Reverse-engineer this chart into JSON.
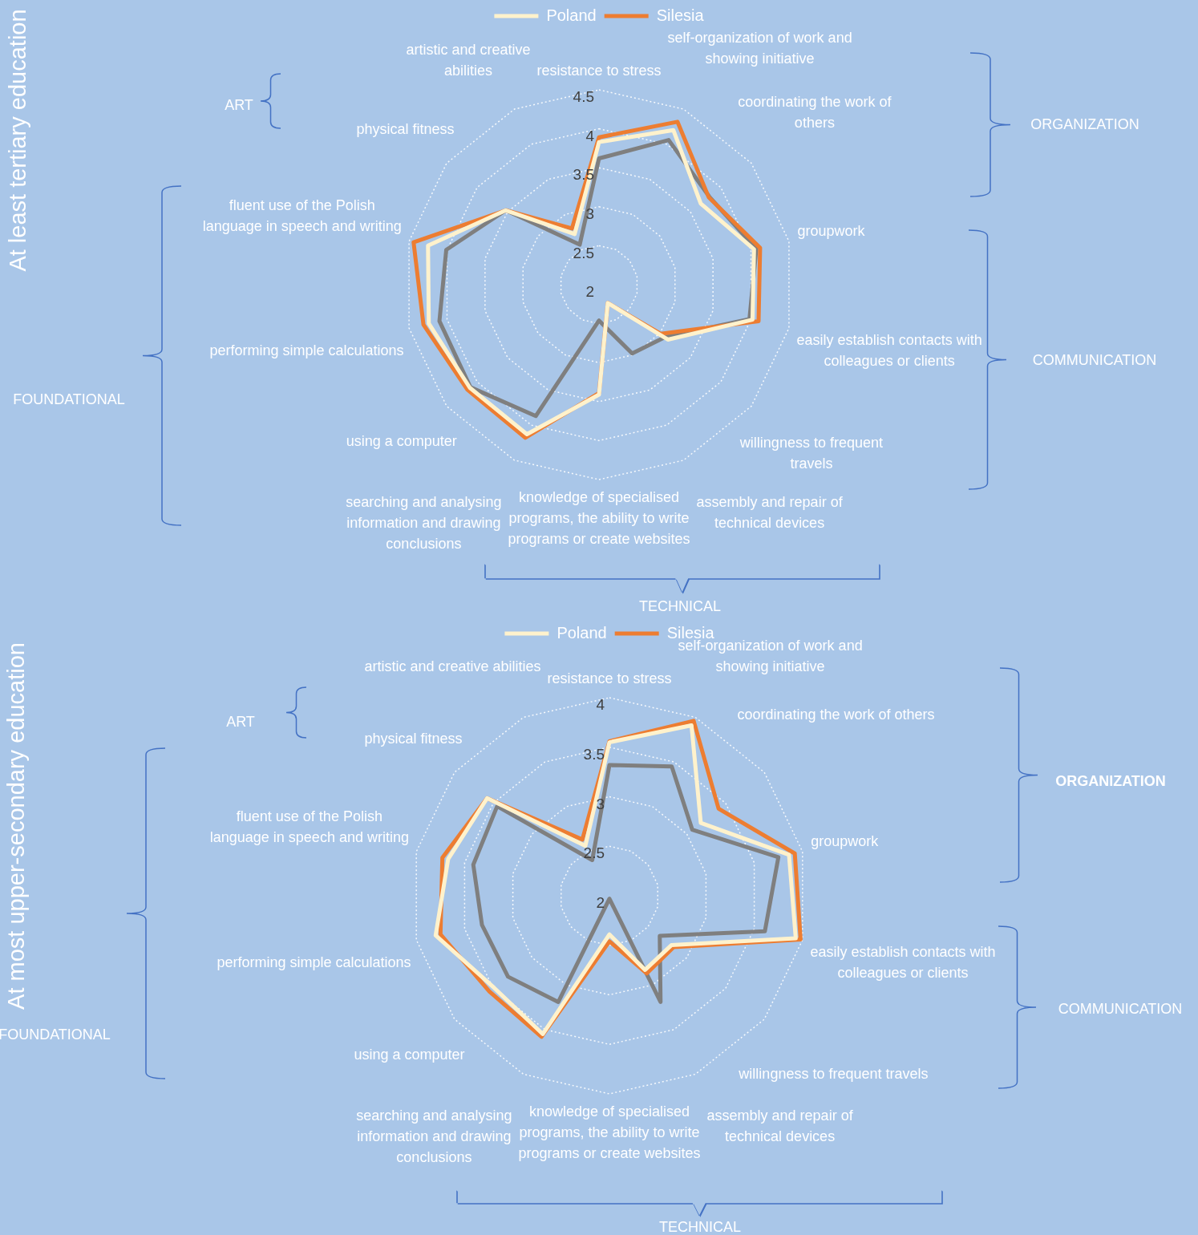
{
  "chart_data": [
    {
      "type": "radar",
      "title": "At least tertiary education",
      "legend": "top",
      "grid": true,
      "marker": "none",
      "line_style": "solid",
      "ylim": [
        2,
        4.5
      ],
      "yticks": [
        2,
        2.5,
        3,
        3.5,
        4,
        4.5
      ],
      "categories": [
        "resistance to stress",
        "self-organization of work and showing initiative",
        "coordinating the work of others",
        "groupwork",
        "easily establish contacts with colleagues or clients",
        "willingness to frequent travels",
        "assembly and repair of technical devices",
        "knowledge of specialised programs, the ability to write programs or create websites",
        "searching and analysing information and drawing conclusions",
        "using a computer",
        "performing simple calculations",
        "fluent use of the Polish language in speech and writing",
        "physical fitness",
        "artistic and creative abilities"
      ],
      "series": [
        {
          "name": "Poland",
          "color": "#fff2cc",
          "values": [
            3.83,
            4.2,
            3.67,
            4.04,
            4.02,
            3.13,
            2.26,
            3.41,
            4.13,
            4.12,
            4.24,
            4.25,
            3.53,
            2.72
          ]
        },
        {
          "name": "Silesia",
          "color": "#ed7d31",
          "values": [
            3.89,
            4.32,
            3.8,
            4.12,
            4.1,
            3.01,
            2.26,
            3.39,
            4.18,
            4.16,
            4.31,
            4.44,
            3.53,
            2.8
          ]
        },
        {
          "color": "#7f7f7f",
          "values": [
            3.62,
            4.06,
            3.81,
            4.07,
            3.98,
            3.08,
            2.98,
            2.46,
            3.87,
            4.11,
            4.1,
            4.01,
            3.53,
            2.57
          ]
        }
      ],
      "annotations": [
        "ART",
        "ORGANIZATION",
        "COMMUNICATION",
        "FOUNDATIONAL",
        "TECHNICAL"
      ]
    },
    {
      "type": "radar",
      "title": "At most upper-secondary education",
      "legend": "top",
      "grid": true,
      "marker": "none",
      "line_style": "solid",
      "ylim": [
        2,
        4
      ],
      "yticks": [
        2,
        2.5,
        3,
        3.5,
        4
      ],
      "categories": [
        "resistance to stress",
        "self-organization of work and showing initiative",
        "coordinating the work of others",
        "groupwork",
        "easily establish contacts with colleagues or clients",
        "willingness to frequent travels",
        "assembly and repair of technical devices",
        "knowledge of specialised programs, the ability to write programs or create websites",
        "searching and analysing information and drawing conclusions",
        "using a computer",
        "performing simple calculations",
        "fluent use of the Polish language in speech and writing",
        "physical fitness",
        "artistic and creative abilities"
      ],
      "series": [
        {
          "name": "Poland",
          "color": "#fff2cc",
          "values": [
            3.55,
            3.91,
            3.18,
            3.86,
            3.93,
            2.8,
            2.83,
            2.39,
            3.55,
            3.49,
            3.8,
            3.67,
            3.58,
            2.56
          ]
        },
        {
          "name": "Silesia",
          "color": "#ed7d31",
          "values": [
            3.56,
            3.96,
            3.41,
            3.92,
            3.98,
            2.83,
            2.87,
            2.46,
            3.58,
            3.55,
            3.75,
            3.73,
            3.58,
            2.63
          ]
        },
        {
          "color": "#7f7f7f",
          "values": [
            3.32,
            3.45,
            3.07,
            3.75,
            3.61,
            2.65,
            3.19,
            2.03,
            3.19,
            3.31,
            3.32,
            3.41,
            3.45,
            2.4
          ]
        }
      ],
      "annotations": [
        "ART",
        "ORGANIZATION",
        "COMMUNICATION",
        "FOUNDATIONAL",
        "TECHNICAL"
      ]
    }
  ]
}
